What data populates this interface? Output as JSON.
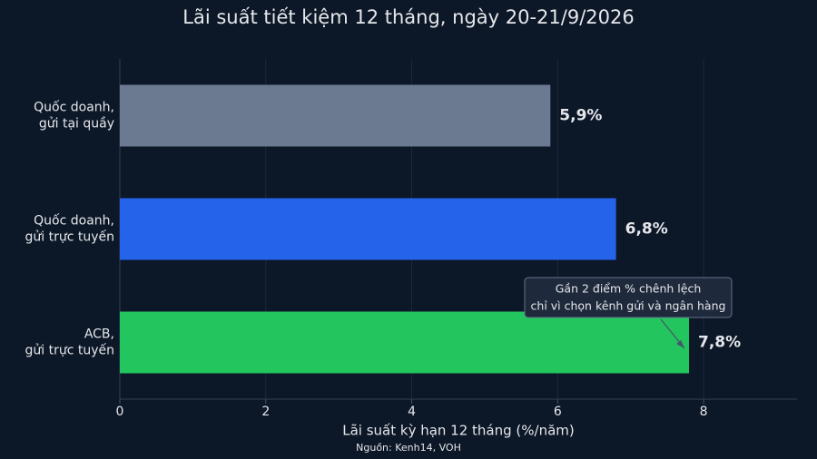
{
  "chart_data": {
    "type": "hbar",
    "title": "Lãi suất tiết kiệm 12 tháng, ngày 20-21/9/2026",
    "categories": [
      [
        "Quốc doanh,",
        "gửi tại quầy"
      ],
      [
        "Quốc doanh,",
        "gửi trực tuyến"
      ],
      [
        "ACB,",
        "gửi trực tuyến"
      ]
    ],
    "values": [
      5.9,
      6.8,
      7.8
    ],
    "value_labels": [
      "5,9%",
      "6,8%",
      "7,8%"
    ],
    "colors": [
      "#6b7a90",
      "#2563eb",
      "#22c55e"
    ],
    "xlim": [
      0,
      9.28
    ],
    "xticks": [
      0,
      2,
      4,
      6,
      8
    ],
    "grid": true,
    "x_label": "Lãi suất kỳ hạn 12 tháng (%/năm)",
    "annotation": [
      "Gần 2 điểm % chênh lệch",
      "chỉ vì chọn kênh gửi và ngân hàng"
    ],
    "source": "Nguồn: Kenh14, VOH"
  }
}
